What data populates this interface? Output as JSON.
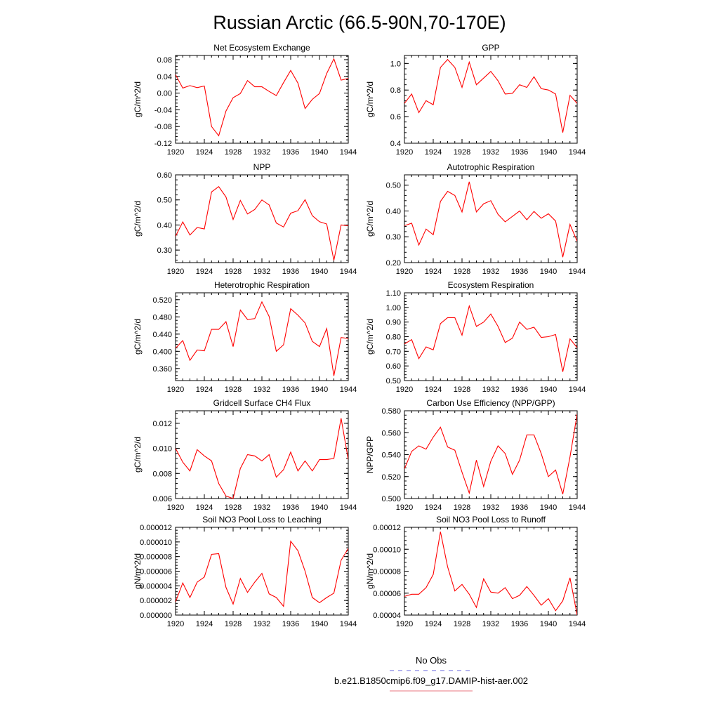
{
  "figure": {
    "title": "Russian Arctic (66.5-90N,70-170E)",
    "legend": [
      {
        "label": "No Obs",
        "color": "#6666dd",
        "dash": true
      },
      {
        "label": "b.e21.B1850cmip6.f09_g17.DAMIP-hist-aer.002",
        "color": "#e8747f",
        "dash": false
      }
    ],
    "series_color": "#ff0000"
  },
  "chart_data": [
    {
      "type": "line",
      "title": "Net Ecosystem Exchange",
      "ylabel": "gC/m^2/d",
      "x": [
        1920,
        1921,
        1922,
        1923,
        1924,
        1925,
        1926,
        1927,
        1928,
        1929,
        1930,
        1931,
        1932,
        1933,
        1934,
        1935,
        1936,
        1937,
        1938,
        1939,
        1940,
        1941,
        1942,
        1943,
        1944
      ],
      "y": [
        0.044,
        0.012,
        0.018,
        0.013,
        0.017,
        -0.08,
        -0.102,
        -0.043,
        -0.011,
        -0.001,
        0.03,
        0.015,
        0.015,
        0.004,
        -0.006,
        0.025,
        0.054,
        0.024,
        -0.037,
        -0.015,
        -0.001,
        0.047,
        0.082,
        0.031,
        0.035
      ],
      "xlim": [
        1920,
        1944
      ],
      "ylim": [
        -0.12,
        0.09
      ],
      "xticks": [
        "1920",
        "1924",
        "1928",
        "1932",
        "1936",
        "1940",
        "1944"
      ],
      "yticks": [
        "-0.12",
        "-0.08",
        "-0.04",
        "0.00",
        "0.04",
        "0.08"
      ]
    },
    {
      "type": "line",
      "title": "GPP",
      "ylabel": "gC/m^2/d",
      "x": [
        1920,
        1921,
        1922,
        1923,
        1924,
        1925,
        1926,
        1927,
        1928,
        1929,
        1930,
        1931,
        1932,
        1933,
        1934,
        1935,
        1936,
        1937,
        1938,
        1939,
        1940,
        1941,
        1942,
        1943,
        1944
      ],
      "y": [
        0.7,
        0.77,
        0.63,
        0.72,
        0.69,
        0.97,
        1.03,
        0.97,
        0.82,
        1.01,
        0.84,
        0.89,
        0.94,
        0.87,
        0.77,
        0.775,
        0.84,
        0.82,
        0.9,
        0.81,
        0.8,
        0.77,
        0.48,
        0.76,
        0.7
      ],
      "xlim": [
        1920,
        1944
      ],
      "ylim": [
        0.4,
        1.06
      ],
      "xticks": [
        "1920",
        "1924",
        "1928",
        "1932",
        "1936",
        "1940",
        "1944"
      ],
      "yticks": [
        "0.4",
        "0.6",
        "0.8",
        "1.0"
      ]
    },
    {
      "type": "line",
      "title": "NPP",
      "ylabel": "gC/m^2/d",
      "x": [
        1920,
        1921,
        1922,
        1923,
        1924,
        1925,
        1926,
        1927,
        1928,
        1929,
        1930,
        1931,
        1932,
        1933,
        1934,
        1935,
        1936,
        1937,
        1938,
        1939,
        1940,
        1941,
        1942,
        1943,
        1944
      ],
      "y": [
        0.355,
        0.412,
        0.36,
        0.39,
        0.384,
        0.532,
        0.553,
        0.512,
        0.422,
        0.498,
        0.444,
        0.462,
        0.5,
        0.48,
        0.408,
        0.392,
        0.447,
        0.457,
        0.501,
        0.437,
        0.413,
        0.404,
        0.259,
        0.4,
        0.397
      ],
      "xlim": [
        1920,
        1944
      ],
      "ylim": [
        0.25,
        0.6
      ],
      "xticks": [
        "1920",
        "1924",
        "1928",
        "1932",
        "1936",
        "1940",
        "1944"
      ],
      "yticks": [
        "0.30",
        "0.40",
        "0.50",
        "0.60"
      ]
    },
    {
      "type": "line",
      "title": "Autotrophic Respiration",
      "ylabel": "gC/m^2/d",
      "x": [
        1920,
        1921,
        1922,
        1923,
        1924,
        1925,
        1926,
        1927,
        1928,
        1929,
        1930,
        1931,
        1932,
        1933,
        1934,
        1935,
        1936,
        1937,
        1938,
        1939,
        1940,
        1941,
        1942,
        1943,
        1944
      ],
      "y": [
        0.343,
        0.353,
        0.268,
        0.33,
        0.308,
        0.437,
        0.476,
        0.46,
        0.396,
        0.513,
        0.396,
        0.428,
        0.44,
        0.387,
        0.358,
        0.379,
        0.4,
        0.366,
        0.398,
        0.372,
        0.389,
        0.361,
        0.221,
        0.348,
        0.283
      ],
      "xlim": [
        1920,
        1944
      ],
      "ylim": [
        0.2,
        0.54
      ],
      "xticks": [
        "1920",
        "1924",
        "1928",
        "1932",
        "1936",
        "1940",
        "1944"
      ],
      "yticks": [
        "0.20",
        "0.30",
        "0.40",
        "0.50"
      ]
    },
    {
      "type": "line",
      "title": "Heterotrophic Respiration",
      "ylabel": "gC/m^2/d",
      "x": [
        1920,
        1921,
        1922,
        1923,
        1924,
        1925,
        1926,
        1927,
        1928,
        1929,
        1930,
        1931,
        1932,
        1933,
        1934,
        1935,
        1936,
        1937,
        1938,
        1939,
        1940,
        1941,
        1942,
        1943,
        1944
      ],
      "y": [
        0.407,
        0.425,
        0.379,
        0.403,
        0.401,
        0.451,
        0.451,
        0.469,
        0.411,
        0.496,
        0.474,
        0.476,
        0.515,
        0.481,
        0.4,
        0.415,
        0.499,
        0.484,
        0.466,
        0.423,
        0.411,
        0.453,
        0.343,
        0.432,
        0.43
      ],
      "xlim": [
        1920,
        1944
      ],
      "ylim": [
        0.332,
        0.536
      ],
      "xticks": [
        "1920",
        "1924",
        "1928",
        "1932",
        "1936",
        "1940",
        "1944"
      ],
      "yticks": [
        "0.360",
        "0.400",
        "0.440",
        "0.480",
        "0.520"
      ]
    },
    {
      "type": "line",
      "title": "Ecosystem Respiration",
      "ylabel": "gC/m^2/d",
      "x": [
        1920,
        1921,
        1922,
        1923,
        1924,
        1925,
        1926,
        1927,
        1928,
        1929,
        1930,
        1931,
        1932,
        1933,
        1934,
        1935,
        1936,
        1937,
        1938,
        1939,
        1940,
        1941,
        1942,
        1943,
        1944
      ],
      "y": [
        0.75,
        0.78,
        0.65,
        0.73,
        0.71,
        0.89,
        0.93,
        0.93,
        0.81,
        1.01,
        0.87,
        0.9,
        0.955,
        0.87,
        0.76,
        0.79,
        0.9,
        0.85,
        0.865,
        0.795,
        0.8,
        0.815,
        0.56,
        0.785,
        0.725
      ],
      "xlim": [
        1920,
        1944
      ],
      "ylim": [
        0.5,
        1.1
      ],
      "xticks": [
        "1920",
        "1924",
        "1928",
        "1932",
        "1936",
        "1940",
        "1944"
      ],
      "yticks": [
        "0.50",
        "0.60",
        "0.70",
        "0.80",
        "0.90",
        "1.00",
        "1.10"
      ]
    },
    {
      "type": "line",
      "title": "Gridcell Surface CH4 Flux",
      "ylabel": "gC/m^2/d",
      "x": [
        1920,
        1921,
        1922,
        1923,
        1924,
        1925,
        1926,
        1927,
        1928,
        1929,
        1930,
        1931,
        1932,
        1933,
        1934,
        1935,
        1936,
        1937,
        1938,
        1939,
        1940,
        1941,
        1942,
        1943,
        1944
      ],
      "y": [
        0.01,
        0.0089,
        0.0082,
        0.0099,
        0.0094,
        0.009,
        0.0072,
        0.0062,
        0.006,
        0.0084,
        0.0095,
        0.0094,
        0.009,
        0.0095,
        0.0077,
        0.0083,
        0.0097,
        0.0082,
        0.009,
        0.0082,
        0.0091,
        0.0091,
        0.0092,
        0.0124,
        0.0091
      ],
      "xlim": [
        1920,
        1944
      ],
      "ylim": [
        0.006,
        0.013
      ],
      "xticks": [
        "1920",
        "1924",
        "1928",
        "1932",
        "1936",
        "1940",
        "1944"
      ],
      "yticks": [
        "0.006",
        "0.008",
        "0.010",
        "0.012"
      ]
    },
    {
      "type": "line",
      "title": "Carbon Use Efficiency (NPP/GPP)",
      "ylabel": "NPP/GPP",
      "x": [
        1920,
        1921,
        1922,
        1923,
        1924,
        1925,
        1926,
        1927,
        1928,
        1929,
        1930,
        1931,
        1932,
        1933,
        1934,
        1935,
        1936,
        1937,
        1938,
        1939,
        1940,
        1941,
        1942,
        1943,
        1944
      ],
      "y": [
        0.527,
        0.543,
        0.548,
        0.545,
        0.556,
        0.565,
        0.547,
        0.544,
        0.524,
        0.505,
        0.535,
        0.511,
        0.534,
        0.548,
        0.541,
        0.522,
        0.535,
        0.558,
        0.558,
        0.541,
        0.52,
        0.526,
        0.504,
        0.538,
        0.577
      ],
      "xlim": [
        1920,
        1944
      ],
      "ylim": [
        0.5,
        0.58
      ],
      "xticks": [
        "1920",
        "1924",
        "1928",
        "1932",
        "1936",
        "1940",
        "1944"
      ],
      "yticks": [
        "0.500",
        "0.520",
        "0.540",
        "0.560",
        "0.580"
      ]
    },
    {
      "type": "line",
      "title": "Soil NO3 Pool Loss to Leaching",
      "ylabel": "gN/m^2/d",
      "x": [
        1920,
        1921,
        1922,
        1923,
        1924,
        1925,
        1926,
        1927,
        1928,
        1929,
        1930,
        1931,
        1932,
        1933,
        1934,
        1935,
        1936,
        1937,
        1938,
        1939,
        1940,
        1941,
        1942,
        1943,
        1944
      ],
      "y": [
        1.8e-06,
        4.4e-06,
        2.4e-06,
        4.5e-06,
        5.2e-06,
        8.3e-06,
        8.4e-06,
        3.8e-06,
        1.5e-06,
        5e-06,
        3.1e-06,
        4.5e-06,
        5.7e-06,
        2.9e-06,
        2.4e-06,
        1.2e-06,
        1.01e-05,
        8.8e-06,
        6e-06,
        2.4e-06,
        1.7e-06,
        2.4e-06,
        3e-06,
        7.5e-06,
        9.1e-06
      ],
      "xlim": [
        1920,
        1944
      ],
      "ylim": [
        0,
        1.2e-05
      ],
      "xticks": [
        "1920",
        "1924",
        "1928",
        "1932",
        "1936",
        "1940",
        "1944"
      ],
      "yticks": [
        "0.000000",
        "0.000002",
        "0.000004",
        "0.000006",
        "0.000008",
        "0.000010",
        "0.000012"
      ]
    },
    {
      "type": "line",
      "title": "Soil NO3 Pool Loss to Runoff",
      "ylabel": "gN/m^2/d",
      "x": [
        1920,
        1921,
        1922,
        1923,
        1924,
        1925,
        1926,
        1927,
        1928,
        1929,
        1930,
        1931,
        1932,
        1933,
        1934,
        1935,
        1936,
        1937,
        1938,
        1939,
        1940,
        1941,
        1942,
        1943,
        1944
      ],
      "y": [
        5.7e-05,
        5.9e-05,
        5.9e-05,
        6.5e-05,
        7.7e-05,
        0.000116,
        8.4e-05,
        6.2e-05,
        6.8e-05,
        5.9e-05,
        4.7e-05,
        7.3e-05,
        6.1e-05,
        6e-05,
        6.5e-05,
        5.5e-05,
        5.8e-05,
        6.6e-05,
        5.8e-05,
        4.9e-05,
        5.5e-05,
        4.4e-05,
        5.3e-05,
        7.4e-05,
        4e-05
      ],
      "xlim": [
        1920,
        1944
      ],
      "ylim": [
        4e-05,
        0.00012
      ],
      "xticks": [
        "1920",
        "1924",
        "1928",
        "1932",
        "1936",
        "1940",
        "1944"
      ],
      "yticks": [
        "0.00004",
        "0.00006",
        "0.00008",
        "0.00010",
        "0.00012"
      ]
    }
  ]
}
